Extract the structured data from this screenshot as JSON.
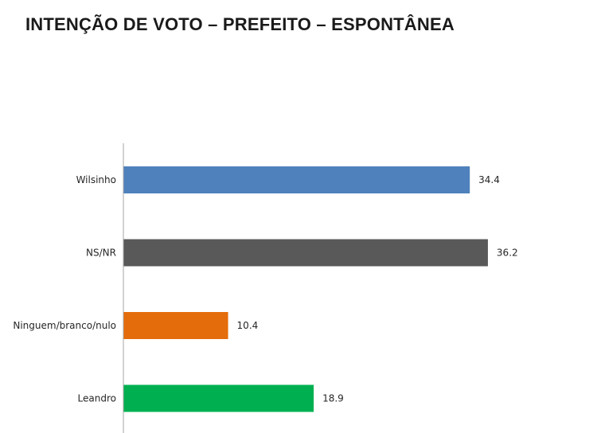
{
  "title": "INTENÇÃO DE VOTO – PREFEITO – ESPONTÂNEA",
  "chart_data": {
    "type": "bar",
    "orientation": "horizontal",
    "title": "INTENÇÃO DE VOTO – PREFEITO – ESPONTÂNEA",
    "categories": [
      "Wilsinho",
      "NS/NR",
      "Ninguem/branco/nulo",
      "Leandro"
    ],
    "values": [
      34.4,
      36.2,
      10.4,
      18.9
    ],
    "colors": [
      "#4f81bd",
      "#595959",
      "#e46c0a",
      "#00b050"
    ],
    "xlim": [
      0,
      40
    ],
    "grid": false,
    "legend": "none",
    "data_labels": true
  }
}
